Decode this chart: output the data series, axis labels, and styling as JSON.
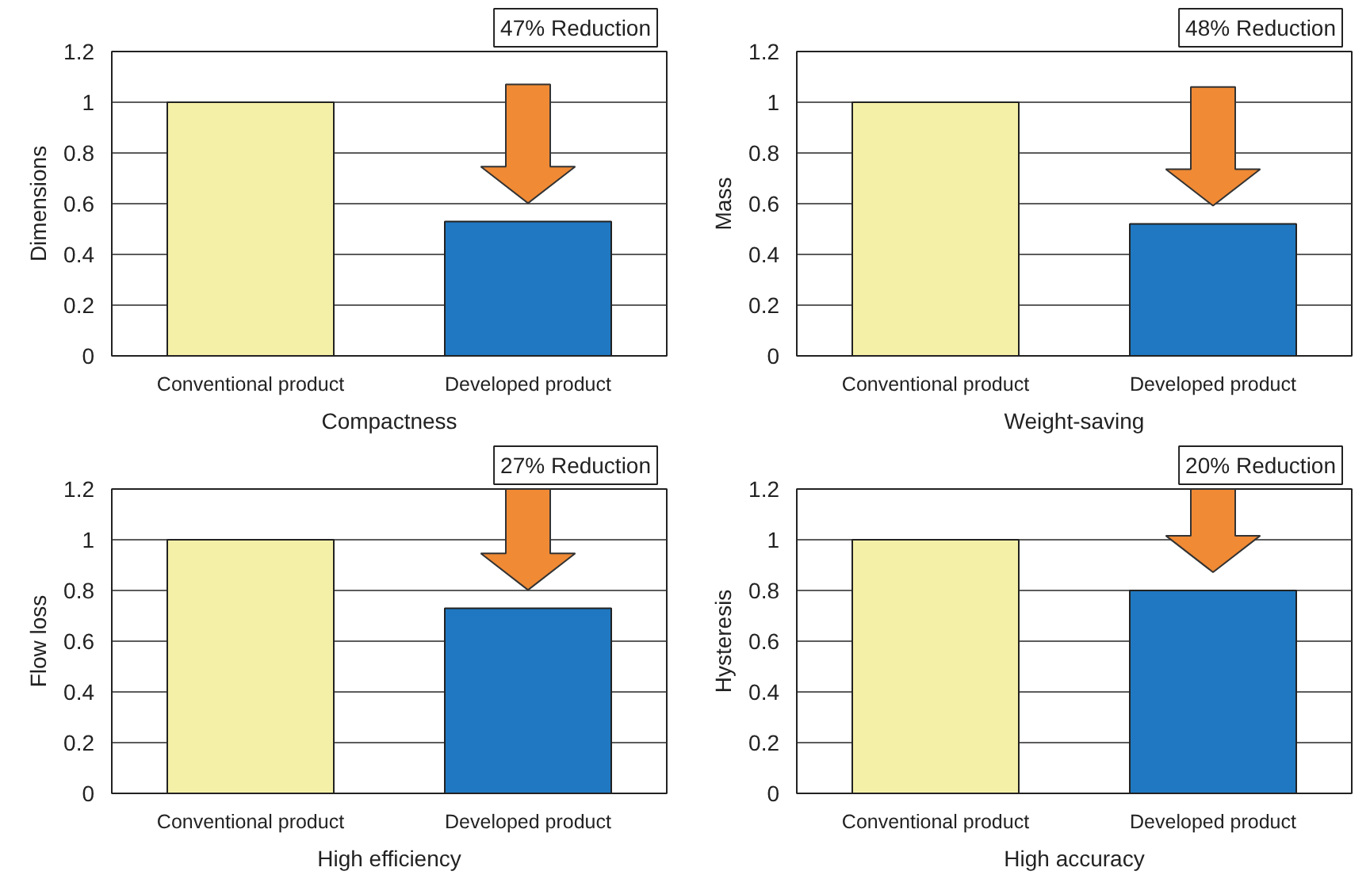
{
  "chart_data": [
    {
      "type": "bar",
      "categories": [
        "Conventional product",
        "Developed product"
      ],
      "values": [
        1,
        0.53
      ],
      "colors": [
        "#f5f0a8",
        "#1f78c1"
      ],
      "xlabel": "Compactness",
      "ylabel": "Dimensions",
      "ylim": [
        0,
        1.2
      ],
      "yticks": [
        0,
        0.2,
        0.4,
        0.6,
        0.8,
        1,
        1.2
      ],
      "grid": "y",
      "annotations": [
        "47% Reduction"
      ]
    },
    {
      "type": "bar",
      "categories": [
        "Conventional product",
        "Developed product"
      ],
      "values": [
        1,
        0.52
      ],
      "colors": [
        "#f5f0a8",
        "#1f78c1"
      ],
      "xlabel": "Weight-saving",
      "ylabel": "Mass",
      "ylim": [
        0,
        1.2
      ],
      "yticks": [
        0,
        0.2,
        0.4,
        0.6,
        0.8,
        1,
        1.2
      ],
      "grid": "y",
      "annotations": [
        "48% Reduction"
      ]
    },
    {
      "type": "bar",
      "categories": [
        "Conventional product",
        "Developed product"
      ],
      "values": [
        1,
        0.73
      ],
      "colors": [
        "#f5f0a8",
        "#1f78c1"
      ],
      "xlabel": "High efficiency",
      "ylabel": "Flow loss",
      "ylim": [
        0,
        1.2
      ],
      "yticks": [
        0,
        0.2,
        0.4,
        0.6,
        0.8,
        1,
        1.2
      ],
      "grid": "y",
      "annotations": [
        "27% Reduction"
      ]
    },
    {
      "type": "bar",
      "categories": [
        "Conventional product",
        "Developed product"
      ],
      "values": [
        1,
        0.8
      ],
      "colors": [
        "#f5f0a8",
        "#1f78c1"
      ],
      "xlabel": "High accuracy",
      "ylabel": "Hysteresis",
      "ylim": [
        0,
        1.2
      ],
      "yticks": [
        0,
        0.2,
        0.4,
        0.6,
        0.8,
        1,
        1.2
      ],
      "grid": "y",
      "annotations": [
        "20% Reduction"
      ]
    }
  ]
}
